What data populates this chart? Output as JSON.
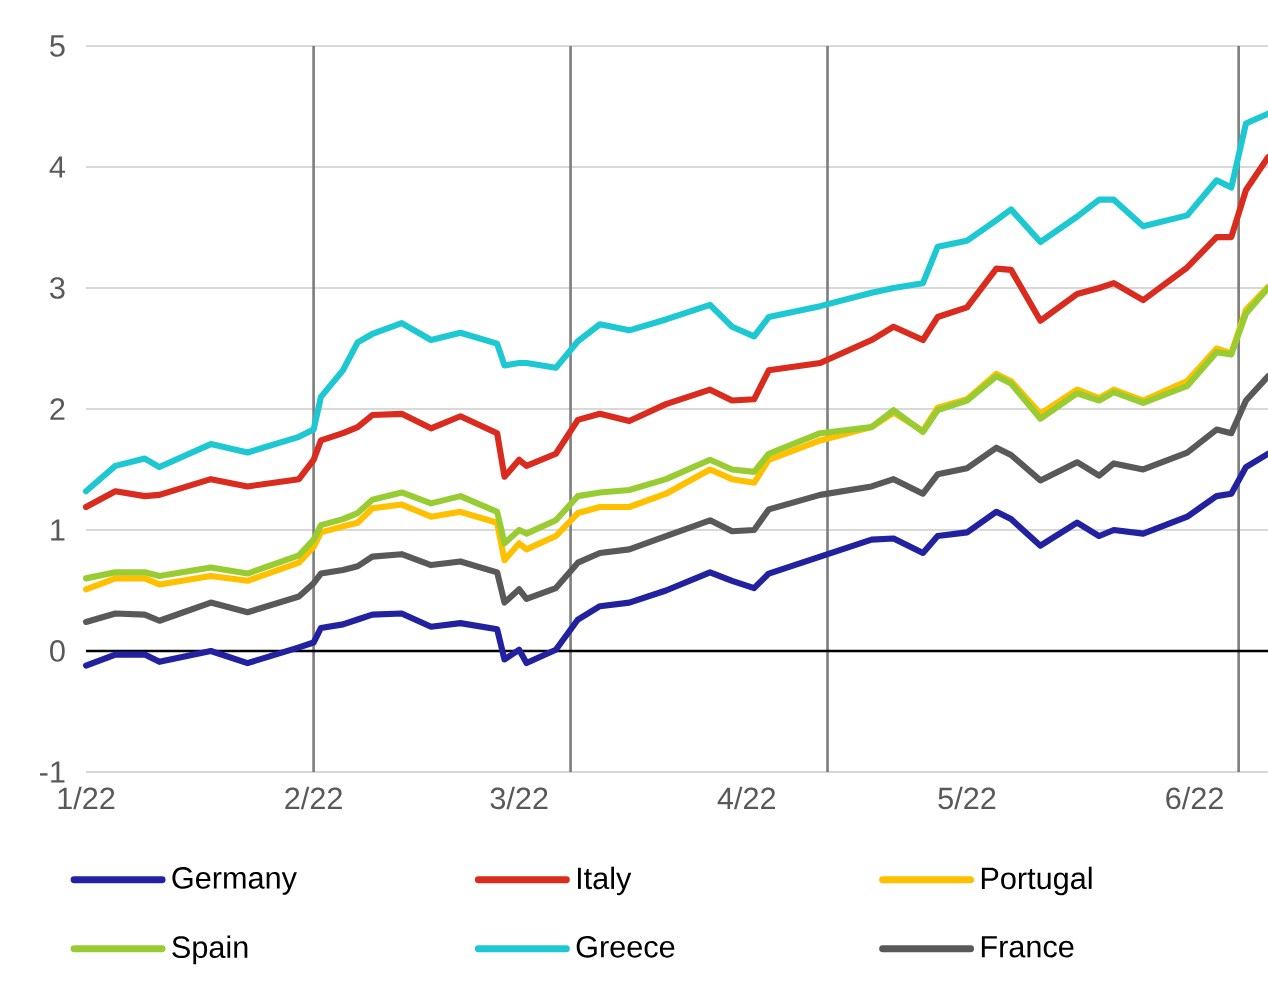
{
  "chart_data": {
    "type": "line",
    "x": [
      "2022-01-01",
      "2022-01-05",
      "2022-01-09",
      "2022-01-11",
      "2022-01-18",
      "2022-01-23",
      "2022-01-30",
      "2022-02-01",
      "2022-02-02",
      "2022-02-05",
      "2022-02-07",
      "2022-02-09",
      "2022-02-13",
      "2022-02-17",
      "2022-02-21",
      "2022-02-26",
      "2022-02-27",
      "2022-03-01",
      "2022-03-02",
      "2022-03-06",
      "2022-03-09",
      "2022-03-12",
      "2022-03-16",
      "2022-03-21",
      "2022-03-27",
      "2022-03-30",
      "2022-04-02",
      "2022-04-04",
      "2022-04-11",
      "2022-04-18",
      "2022-04-21",
      "2022-04-25",
      "2022-04-27",
      "2022-05-01",
      "2022-05-05",
      "2022-05-07",
      "2022-05-11",
      "2022-05-16",
      "2022-05-19",
      "2022-05-21",
      "2022-05-25",
      "2022-05-31",
      "2022-06-04",
      "2022-06-06",
      "2022-06-08",
      "2022-06-11"
    ],
    "series": [
      {
        "name": "Germany",
        "color": "#2222a0",
        "values": [
          -0.12,
          -0.03,
          -0.03,
          -0.09,
          0.0,
          -0.1,
          0.03,
          0.07,
          0.19,
          0.22,
          0.26,
          0.3,
          0.31,
          0.2,
          0.23,
          0.18,
          -0.07,
          0.01,
          -0.1,
          0.01,
          0.26,
          0.37,
          0.4,
          0.5,
          0.65,
          0.58,
          0.52,
          0.64,
          0.78,
          0.92,
          0.93,
          0.81,
          0.95,
          0.98,
          1.15,
          1.09,
          0.87,
          1.06,
          0.95,
          1.0,
          0.97,
          1.11,
          1.28,
          1.3,
          1.52,
          1.63
        ]
      },
      {
        "name": "Italy",
        "color": "#d92b1e",
        "values": [
          1.19,
          1.32,
          1.28,
          1.29,
          1.42,
          1.36,
          1.42,
          1.58,
          1.74,
          1.8,
          1.85,
          1.95,
          1.96,
          1.84,
          1.94,
          1.8,
          1.44,
          1.58,
          1.53,
          1.63,
          1.91,
          1.96,
          1.9,
          2.04,
          2.16,
          2.07,
          2.08,
          2.32,
          2.38,
          2.57,
          2.68,
          2.57,
          2.76,
          2.84,
          3.16,
          3.15,
          2.73,
          2.95,
          3.0,
          3.04,
          2.9,
          3.17,
          3.42,
          3.42,
          3.81,
          4.08
        ]
      },
      {
        "name": "Portugal",
        "color": "#ffc000",
        "values": [
          0.51,
          0.6,
          0.6,
          0.55,
          0.62,
          0.58,
          0.73,
          0.86,
          0.98,
          1.03,
          1.06,
          1.18,
          1.21,
          1.11,
          1.15,
          1.06,
          0.75,
          0.89,
          0.84,
          0.95,
          1.14,
          1.19,
          1.19,
          1.3,
          1.5,
          1.42,
          1.39,
          1.58,
          1.74,
          1.85,
          1.97,
          1.82,
          2.01,
          2.08,
          2.29,
          2.23,
          1.96,
          2.16,
          2.09,
          2.16,
          2.07,
          2.23,
          2.5,
          2.46,
          2.82,
          3.01
        ]
      },
      {
        "name": "Spain",
        "color": "#99cc33",
        "values": [
          0.6,
          0.65,
          0.65,
          0.62,
          0.69,
          0.64,
          0.79,
          0.92,
          1.04,
          1.09,
          1.14,
          1.25,
          1.31,
          1.22,
          1.28,
          1.15,
          0.89,
          1.0,
          0.97,
          1.08,
          1.28,
          1.31,
          1.33,
          1.42,
          1.58,
          1.5,
          1.48,
          1.63,
          1.8,
          1.85,
          1.99,
          1.81,
          1.99,
          2.07,
          2.27,
          2.21,
          1.92,
          2.13,
          2.07,
          2.14,
          2.05,
          2.19,
          2.47,
          2.45,
          2.79,
          3.0
        ]
      },
      {
        "name": "Greece",
        "color": "#1ec8d2",
        "values": [
          1.32,
          1.53,
          1.59,
          1.52,
          1.71,
          1.64,
          1.77,
          1.83,
          2.1,
          2.32,
          2.55,
          2.62,
          2.71,
          2.57,
          2.63,
          2.54,
          2.36,
          2.38,
          2.38,
          2.34,
          2.56,
          2.7,
          2.65,
          2.74,
          2.86,
          2.68,
          2.6,
          2.76,
          2.85,
          2.96,
          3.0,
          3.04,
          3.34,
          3.39,
          3.56,
          3.65,
          3.38,
          3.59,
          3.73,
          3.73,
          3.51,
          3.6,
          3.89,
          3.83,
          4.36,
          4.44
        ]
      },
      {
        "name": "France",
        "color": "#595959",
        "values": [
          0.24,
          0.31,
          0.3,
          0.25,
          0.4,
          0.32,
          0.45,
          0.56,
          0.64,
          0.67,
          0.7,
          0.78,
          0.8,
          0.71,
          0.74,
          0.65,
          0.4,
          0.51,
          0.43,
          0.52,
          0.73,
          0.81,
          0.84,
          0.95,
          1.08,
          0.99,
          1.0,
          1.17,
          1.29,
          1.36,
          1.42,
          1.3,
          1.46,
          1.51,
          1.68,
          1.62,
          1.41,
          1.56,
          1.45,
          1.55,
          1.5,
          1.64,
          1.83,
          1.8,
          2.07,
          2.27
        ]
      }
    ],
    "xlim": [
      "2022-01-01",
      "2022-06-11"
    ],
    "xticks": [
      {
        "value": "2022-01-01",
        "label": "1/22"
      },
      {
        "value": "2022-02-01",
        "label": "2/22"
      },
      {
        "value": "2022-03-01",
        "label": "3/22"
      },
      {
        "value": "2022-04-01",
        "label": "4/22"
      },
      {
        "value": "2022-05-01",
        "label": "5/22"
      },
      {
        "value": "2022-06-01",
        "label": "6/22"
      }
    ],
    "ylim": [
      -1,
      5
    ],
    "yticks": [
      -1,
      0,
      1,
      2,
      3,
      4,
      5
    ],
    "grid": "y",
    "legend": "bottom",
    "line_style": "solid",
    "ref_lines": [
      {
        "axis": "x",
        "value": "2022-02-01",
        "color": "#7f7f7f"
      },
      {
        "axis": "x",
        "value": "2022-03-08",
        "color": "#7f7f7f"
      },
      {
        "axis": "x",
        "value": "2022-04-12",
        "color": "#7f7f7f"
      },
      {
        "axis": "x",
        "value": "2022-06-07",
        "color": "#7f7f7f"
      }
    ]
  }
}
